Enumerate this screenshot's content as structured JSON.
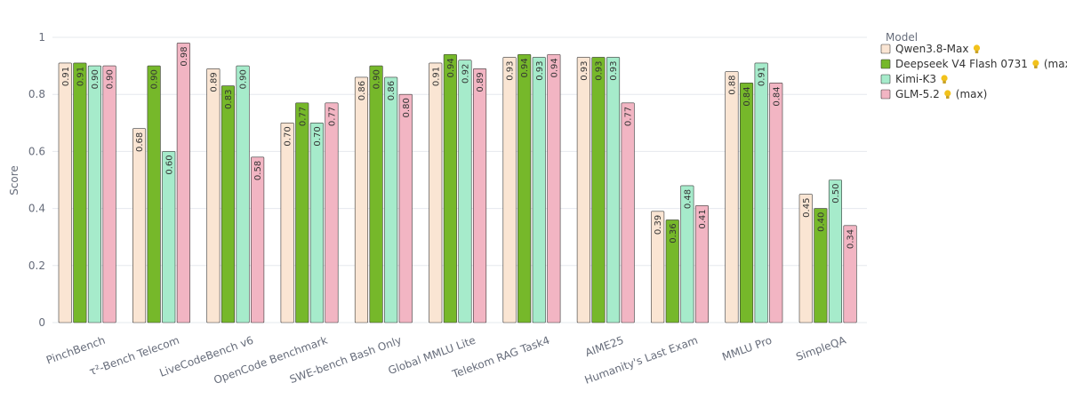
{
  "chart_data": {
    "type": "bar",
    "ylabel": "Score",
    "ylim": [
      0,
      1
    ],
    "yticks": [
      "0",
      "0.2",
      "0.4",
      "0.6",
      "0.8",
      "1"
    ],
    "grid": true,
    "legend": {
      "title": "Model",
      "placement": "right"
    },
    "categories": [
      "PinchBench",
      "τ²-Bench Telecom",
      "LiveCodeBench v6",
      "OpenCode Benchmark",
      "SWE-bench Bash Only",
      "Global MMLU Lite",
      "Telekom RAG Task4",
      "AIME25",
      "Humanity's Last Exam",
      "MMLU Pro",
      "SimpleQA"
    ],
    "series": [
      {
        "name": "Qwen3.8-Max",
        "suffix": "",
        "bulb": true,
        "color": "#fae5d3",
        "values": [
          0.91,
          0.68,
          0.89,
          0.7,
          0.86,
          0.91,
          0.93,
          0.93,
          0.39,
          0.88,
          0.45
        ],
        "labels": [
          "0.91",
          "0.68",
          "0.89",
          "0.70",
          "0.86",
          "0.91",
          "0.93",
          "0.93",
          "0.39",
          "0.88",
          "0.45"
        ]
      },
      {
        "name": "Deepseek V4 Flash 0731",
        "suffix": "(max)",
        "bulb": true,
        "color": "#76b82a",
        "values": [
          0.91,
          0.9,
          0.83,
          0.77,
          0.9,
          0.94,
          0.94,
          0.93,
          0.36,
          0.84,
          0.4
        ],
        "labels": [
          "0.91",
          "0.90",
          "0.83",
          "0.77",
          "0.90",
          "0.94",
          "0.94",
          "0.93",
          "0.36",
          "0.84",
          "0.40"
        ]
      },
      {
        "name": "Kimi-K3",
        "suffix": "",
        "bulb": true,
        "color": "#a6ebcb",
        "values": [
          0.9,
          0.6,
          0.9,
          0.7,
          0.86,
          0.92,
          0.93,
          0.93,
          0.48,
          0.91,
          0.5
        ],
        "labels": [
          "0.90",
          "0.60",
          "0.90",
          "0.70",
          "0.86",
          "0.92",
          "0.93",
          "0.93",
          "0.48",
          "0.91",
          "0.50"
        ]
      },
      {
        "name": "GLM-5.2",
        "suffix": "(max)",
        "bulb": true,
        "color": "#f2b5c3",
        "values": [
          0.9,
          0.98,
          0.58,
          0.77,
          0.8,
          0.89,
          0.94,
          0.77,
          0.41,
          0.84,
          0.34
        ],
        "labels": [
          "0.90",
          "0.98",
          "0.58",
          "0.77",
          "0.80",
          "0.89",
          "0.94",
          "0.77",
          "0.41",
          "0.84",
          "0.34"
        ]
      }
    ]
  }
}
